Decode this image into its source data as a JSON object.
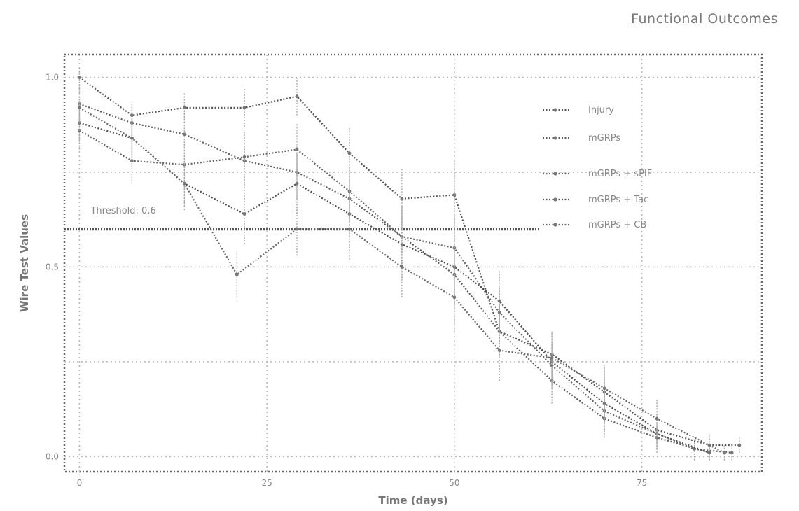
{
  "chart_data": {
    "type": "line",
    "title": "Functional Outcomes",
    "xlabel": "Time (days)",
    "ylabel": "Wire Test Values",
    "xlim": [
      -2,
      91
    ],
    "ylim": [
      -0.04,
      1.06
    ],
    "x_ticks": [
      0,
      25,
      50,
      75
    ],
    "x_tick_labels": [
      "0",
      "25",
      "50",
      "75"
    ],
    "y_ticks": [
      0.0,
      0.5,
      1.0
    ],
    "y_tick_labels": [
      "0.0",
      "0.5",
      "1.0"
    ],
    "y_grid_extra": [
      0.25,
      0.75
    ],
    "grid": true,
    "legend_position": "top-right",
    "threshold": {
      "value": 0.6,
      "label": "Threshold: 0.6"
    },
    "series": [
      {
        "name": "Injury",
        "x": [
          0,
          7,
          14,
          22,
          29,
          36,
          43,
          50,
          56,
          63,
          70,
          77,
          84,
          88
        ],
        "y": [
          1.0,
          0.9,
          0.92,
          0.92,
          0.95,
          0.8,
          0.68,
          0.69,
          0.33,
          0.27,
          0.17,
          0.07,
          0.03,
          0.03
        ],
        "err": [
          0.03,
          0.04,
          0.04,
          0.05,
          0.05,
          0.07,
          0.08,
          0.09,
          0.07,
          0.06,
          0.06,
          0.05,
          0.03,
          0.02
        ]
      },
      {
        "name": "mGRPs",
        "x": [
          0,
          7,
          14,
          22,
          29,
          36,
          43,
          50,
          56,
          63,
          70,
          77,
          84
        ],
        "y": [
          0.93,
          0.88,
          0.85,
          0.78,
          0.75,
          0.68,
          0.58,
          0.48,
          0.33,
          0.2,
          0.1,
          0.05,
          0.01
        ],
        "err": [
          0.05,
          0.05,
          0.06,
          0.06,
          0.07,
          0.07,
          0.08,
          0.08,
          0.07,
          0.06,
          0.05,
          0.04,
          0.02
        ]
      },
      {
        "name": "mGRPs + sPIF",
        "x": [
          0,
          7,
          14,
          22,
          29,
          36,
          43,
          50,
          56,
          63,
          70,
          77,
          82,
          87
        ],
        "y": [
          0.86,
          0.78,
          0.77,
          0.79,
          0.81,
          0.7,
          0.58,
          0.55,
          0.38,
          0.24,
          0.12,
          0.06,
          0.02,
          0.01
        ],
        "err": [
          0.05,
          0.06,
          0.06,
          0.07,
          0.07,
          0.08,
          0.08,
          0.08,
          0.07,
          0.06,
          0.05,
          0.04,
          0.03,
          0.02
        ]
      },
      {
        "name": "mGRPs + Tac",
        "x": [
          0,
          7,
          14,
          22,
          29,
          36,
          43,
          50,
          56,
          63,
          70,
          77,
          84
        ],
        "y": [
          0.88,
          0.84,
          0.72,
          0.64,
          0.72,
          0.64,
          0.56,
          0.5,
          0.41,
          0.25,
          0.14,
          0.06,
          0.01
        ],
        "err": [
          0.05,
          0.06,
          0.07,
          0.08,
          0.08,
          0.09,
          0.09,
          0.09,
          0.08,
          0.06,
          0.05,
          0.04,
          0.02
        ]
      },
      {
        "name": "mGRPs + CB",
        "x": [
          0,
          7,
          14,
          21,
          29,
          36,
          43,
          50,
          56,
          63,
          70,
          77,
          86
        ],
        "y": [
          0.92,
          0.84,
          0.72,
          0.48,
          0.6,
          0.6,
          0.5,
          0.42,
          0.28,
          0.26,
          0.18,
          0.1,
          0.01
        ],
        "err": [
          0.04,
          0.05,
          0.06,
          0.06,
          0.07,
          0.08,
          0.08,
          0.09,
          0.08,
          0.07,
          0.06,
          0.05,
          0.02
        ]
      }
    ]
  }
}
